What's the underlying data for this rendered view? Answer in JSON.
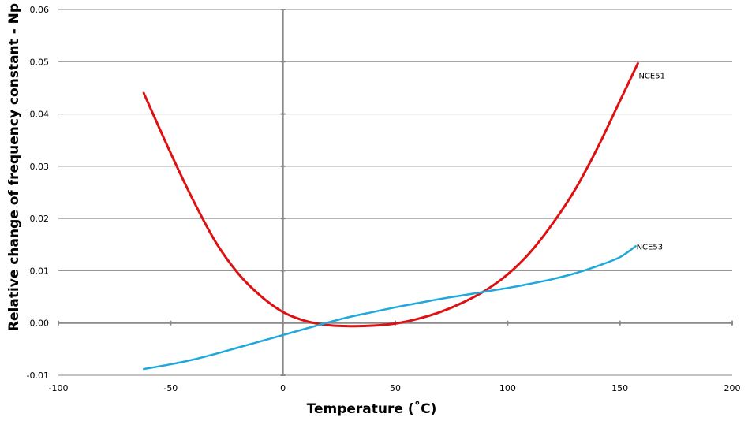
{
  "chart_data": {
    "type": "line",
    "title": "",
    "xlabel": "Temperature (˚C)",
    "ylabel": "Relative change of frequency constant - Np",
    "xlim": [
      -100,
      200
    ],
    "ylim": [
      -0.01,
      0.06
    ],
    "x_ticks": [
      "-100",
      "-50",
      "0",
      "50",
      "100",
      "150",
      "200"
    ],
    "y_ticks": [
      "-0.01",
      "0.00",
      "0.01",
      "0.02",
      "0.03",
      "0.04",
      "0.05",
      "0.06"
    ],
    "grid": true,
    "legend": "inline labels at line ends",
    "series": [
      {
        "name": "NCE51",
        "color": "#dd1111",
        "x": [
          -62,
          -50,
          -40,
          -30,
          -20,
          -10,
          0,
          10,
          20,
          30,
          40,
          50,
          60,
          70,
          80,
          90,
          100,
          110,
          120,
          130,
          140,
          150,
          158
        ],
        "y": [
          0.044,
          0.0325,
          0.0235,
          0.0155,
          0.0095,
          0.0052,
          0.0021,
          0.0004,
          -0.0004,
          -0.0006,
          -0.0005,
          -0.0001,
          0.0008,
          0.0021,
          0.0039,
          0.0062,
          0.0093,
          0.0135,
          0.019,
          0.0255,
          0.0335,
          0.0425,
          0.0497
        ]
      },
      {
        "name": "NCE53",
        "color": "#1ea8dc",
        "x": [
          -62,
          -50,
          -40,
          -30,
          -20,
          -10,
          0,
          10,
          20,
          30,
          40,
          50,
          60,
          70,
          80,
          90,
          100,
          110,
          120,
          130,
          140,
          150,
          157
        ],
        "y": [
          -0.0088,
          -0.0079,
          -0.007,
          -0.0059,
          -0.0047,
          -0.0035,
          -0.0023,
          -0.0011,
          0.0001,
          0.0012,
          0.0021,
          0.003,
          0.0038,
          0.0046,
          0.0053,
          0.006,
          0.0067,
          0.0075,
          0.0084,
          0.0095,
          0.0109,
          0.0126,
          0.0147
        ]
      }
    ]
  }
}
